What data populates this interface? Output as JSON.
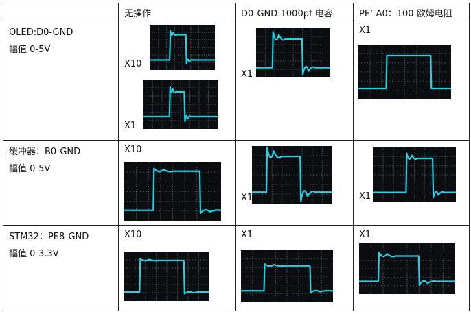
{
  "table": {
    "headers": [
      "",
      "无操作",
      "D0-GND:1000pf 电容",
      "PE’-A0：100 欧姆电阻"
    ],
    "rows": [
      {
        "label_line1": "OLED:D0-GND",
        "label_line2": "幅值 0-5V",
        "cells": [
          {
            "captions": [
              "X10",
              "X1"
            ]
          },
          {
            "captions": [
              "X1"
            ]
          },
          {
            "captions": [
              "X1"
            ]
          }
        ]
      },
      {
        "label_line1": "缓冲器：B0-GND",
        "label_line2": "幅值 0-5V",
        "cells": [
          {
            "captions": [
              "X10"
            ]
          },
          {
            "captions": [
              "X1"
            ]
          },
          {
            "captions": [
              "X1"
            ]
          }
        ]
      },
      {
        "label_line1": "STM32：PE8-GND",
        "label_line2": "幅值 0-3.3V",
        "cells": [
          {
            "captions": [
              "X10"
            ]
          },
          {
            "captions": [
              "X1"
            ]
          },
          {
            "captions": [
              "X1"
            ]
          }
        ]
      }
    ]
  },
  "colors": {
    "trace": "#22d3e6",
    "screen": "#0b0d10",
    "grid_dots": "#5b6570"
  }
}
